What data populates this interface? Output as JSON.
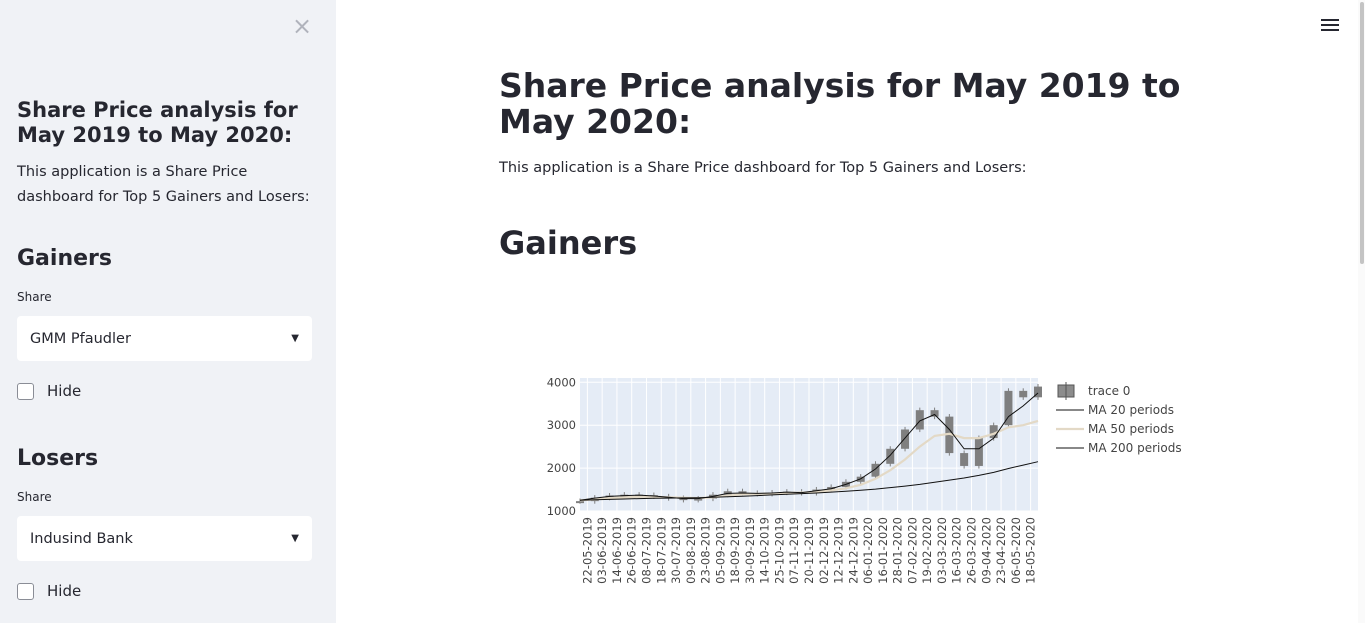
{
  "sidebar": {
    "close_symbol": "×",
    "title": "Share Price analysis for May 2019 to May 2020:",
    "description": "This application is a Share Price dashboard for Top 5 Gainers and Losers:",
    "gainers": {
      "heading": "Gainers",
      "label": "Share",
      "selected": "GMM Pfaudler",
      "hide_label": "Hide",
      "hide_checked": false
    },
    "losers": {
      "heading": "Losers",
      "label": "Share",
      "selected": "Indusind Bank",
      "hide_label": "Hide",
      "hide_checked": false
    }
  },
  "main": {
    "title": "Share Price analysis for May 2019 to May 2020:",
    "description": "This application is a Share Price dashboard for Top 5 Gainers and Losers:",
    "section_heading": "Gainers"
  },
  "icons": {
    "menu": "hamburger-menu-icon",
    "close": "close-icon",
    "dropdown": "chevron-down-icon"
  },
  "chart_data": {
    "type": "candlestick",
    "title": "",
    "yticks": [
      1000,
      2000,
      3000,
      4000
    ],
    "ylim": [
      1000,
      4100
    ],
    "xticks": [
      "22-05-2019",
      "03-06-2019",
      "14-06-2019",
      "26-06-2019",
      "08-07-2019",
      "18-07-2019",
      "30-07-2019",
      "09-08-2019",
      "23-08-2019",
      "05-09-2019",
      "18-09-2019",
      "30-09-2019",
      "14-10-2019",
      "25-10-2019",
      "07-11-2019",
      "20-11-2019",
      "02-12-2019",
      "12-12-2019",
      "24-12-2019",
      "06-01-2020",
      "16-01-2020",
      "28-01-2020",
      "07-02-2020",
      "19-02-2020",
      "03-03-2020",
      "16-03-2020",
      "26-03-2020",
      "09-04-2020",
      "23-04-2020",
      "06-05-2020",
      "18-05-2020"
    ],
    "price": [
      1230,
      1310,
      1360,
      1380,
      1370,
      1340,
      1300,
      1260,
      1290,
      1380,
      1460,
      1420,
      1400,
      1430,
      1450,
      1420,
      1500,
      1560,
      1680,
      1800,
      2100,
      2450,
      2900,
      3350,
      3200,
      2350,
      2050,
      2700,
      3000,
      3800,
      3650,
      3900
    ],
    "ma20": [
      1250,
      1300,
      1340,
      1360,
      1370,
      1350,
      1320,
      1290,
      1290,
      1340,
      1410,
      1420,
      1410,
      1420,
      1440,
      1430,
      1470,
      1520,
      1620,
      1750,
      1980,
      2300,
      2700,
      3100,
      3250,
      2900,
      2450,
      2450,
      2700,
      3200,
      3450,
      3750
    ],
    "ma50": [
      1250,
      1270,
      1300,
      1320,
      1330,
      1330,
      1320,
      1310,
      1300,
      1320,
      1360,
      1390,
      1400,
      1400,
      1420,
      1430,
      1440,
      1480,
      1530,
      1610,
      1750,
      1950,
      2200,
      2500,
      2750,
      2800,
      2700,
      2700,
      2800,
      2950,
      3000,
      3100
    ],
    "ma200": [
      1250,
      1260,
      1270,
      1280,
      1290,
      1295,
      1300,
      1305,
      1310,
      1320,
      1330,
      1345,
      1360,
      1375,
      1390,
      1405,
      1420,
      1440,
      1460,
      1485,
      1510,
      1545,
      1580,
      1620,
      1670,
      1720,
      1770,
      1830,
      1900,
      1990,
      2070,
      2150
    ],
    "legend": [
      "trace 0",
      "MA 20 periods",
      "MA 50 periods",
      "MA 200 periods"
    ],
    "colors": {
      "candle": "#7f7f7f",
      "ma20": "#111111",
      "ma50": "#e3d9c6",
      "ma200": "#111111",
      "plot_bg": "#e5ecf6"
    }
  }
}
